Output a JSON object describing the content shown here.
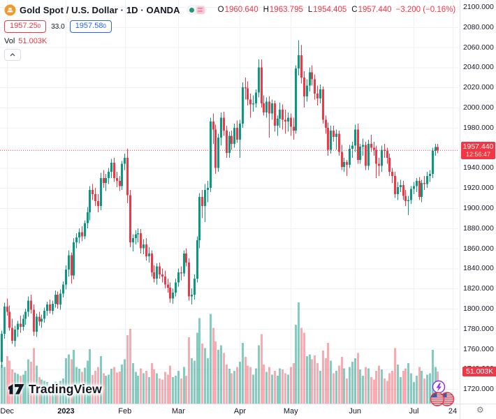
{
  "header": {
    "title": "Gold Spot / U.S. Dollar · 1D · OANDA",
    "ohlc": {
      "o_label": "O",
      "o": "1960.640",
      "h_label": "H",
      "h": "1963.795",
      "l_label": "L",
      "l": "1954.405",
      "c_label": "C",
      "c": "1957.440",
      "change": "−3.200 (−0.16%)"
    },
    "sell_price": "1957.25",
    "sell_sup": "0",
    "spread": "33.0",
    "buy_price": "1957.58",
    "buy_sup": "0",
    "vol_label": "Vol",
    "vol_value": "51.003K"
  },
  "price_tag": {
    "price": "1957.440",
    "countdown": "12:56:47"
  },
  "volume_tag": "51.003K",
  "logo_text": "TradingView",
  "gear_glyph": "⚙",
  "colors": {
    "up": "#089981",
    "down": "#f23645",
    "vol_up": "rgba(8,153,129,0.5)",
    "vol_down": "rgba(242,54,69,0.42)",
    "blue": "#2962ff",
    "grid": "#eef1f6",
    "axis_border": "#e0e3eb",
    "text": "#131722"
  },
  "chart_data": {
    "type": "candlestick+volume",
    "title": "Gold Spot / U.S. Dollar",
    "interval": "1D",
    "exchange": "OANDA",
    "legend_open": 1960.64,
    "legend_high": 1963.795,
    "legend_low": 1954.405,
    "legend_close": 1957.44,
    "change": -3.2,
    "change_pct": -0.16,
    "current_price": 1957.44,
    "current_volume_k": 51.003,
    "y_ticks": {
      "min": 1720,
      "max": 2100,
      "step": 20
    },
    "grid": true,
    "legend_position": "top-left",
    "time_ticks": [
      {
        "label": "Dec",
        "i": 2
      },
      {
        "label": "2023",
        "i": 24,
        "bold": true
      },
      {
        "label": "Feb",
        "i": 46
      },
      {
        "label": "Mar",
        "i": 66
      },
      {
        "label": "Apr",
        "i": 89
      },
      {
        "label": "May",
        "i": 108
      },
      {
        "label": "Jun",
        "i": 132
      },
      {
        "label": "Jul",
        "i": 154
      },
      {
        "label": "24",
        "i": 163,
        "x": 648
      }
    ],
    "candles_format": [
      "open",
      "high",
      "low",
      "close",
      "volume_k"
    ],
    "candles": [
      [
        1747,
        1778,
        1741,
        1775,
        62
      ],
      [
        1775,
        1806,
        1770,
        1802,
        58
      ],
      [
        1802,
        1810,
        1793,
        1797,
        75
      ],
      [
        1797,
        1803,
        1778,
        1781,
        68
      ],
      [
        1781,
        1790,
        1765,
        1768,
        54
      ],
      [
        1768,
        1783,
        1762,
        1779,
        49
      ],
      [
        1779,
        1788,
        1772,
        1785,
        47
      ],
      [
        1785,
        1793,
        1776,
        1782,
        44
      ],
      [
        1782,
        1794,
        1778,
        1790,
        46
      ],
      [
        1790,
        1800,
        1784,
        1797,
        52
      ],
      [
        1797,
        1812,
        1792,
        1808,
        70
      ],
      [
        1808,
        1814,
        1795,
        1799,
        66
      ],
      [
        1799,
        1804,
        1773,
        1777,
        88
      ],
      [
        1777,
        1795,
        1772,
        1792,
        60
      ],
      [
        1792,
        1797,
        1783,
        1787,
        42
      ],
      [
        1787,
        1794,
        1781,
        1790,
        38
      ],
      [
        1790,
        1801,
        1786,
        1798,
        36
      ],
      [
        1798,
        1807,
        1793,
        1804,
        34
      ],
      [
        1804,
        1809,
        1795,
        1798,
        30
      ],
      [
        1798,
        1808,
        1794,
        1805,
        32
      ],
      [
        1805,
        1818,
        1801,
        1814,
        35
      ],
      [
        1814,
        1817,
        1800,
        1804,
        33
      ],
      [
        1804,
        1819,
        1799,
        1815,
        36
      ],
      [
        1815,
        1827,
        1811,
        1824,
        40
      ],
      [
        1824,
        1843,
        1819,
        1839,
        72
      ],
      [
        1839,
        1858,
        1832,
        1853,
        78
      ],
      [
        1853,
        1856,
        1825,
        1833,
        70
      ],
      [
        1833,
        1870,
        1829,
        1866,
        85
      ],
      [
        1866,
        1875,
        1860,
        1871,
        58
      ],
      [
        1871,
        1880,
        1865,
        1876,
        55
      ],
      [
        1876,
        1882,
        1867,
        1872,
        50
      ],
      [
        1872,
        1888,
        1869,
        1885,
        57
      ],
      [
        1885,
        1901,
        1880,
        1896,
        68
      ],
      [
        1896,
        1922,
        1888,
        1918,
        86
      ],
      [
        1918,
        1924,
        1908,
        1914,
        45
      ],
      [
        1914,
        1920,
        1902,
        1907,
        52
      ],
      [
        1907,
        1914,
        1896,
        1902,
        58
      ],
      [
        1902,
        1935,
        1898,
        1930,
        75
      ],
      [
        1930,
        1938,
        1920,
        1925,
        48
      ],
      [
        1925,
        1934,
        1917,
        1930,
        44
      ],
      [
        1930,
        1940,
        1924,
        1936,
        46
      ],
      [
        1936,
        1949,
        1930,
        1945,
        55
      ],
      [
        1945,
        1950,
        1926,
        1930,
        58
      ],
      [
        1930,
        1936,
        1921,
        1927,
        49
      ],
      [
        1927,
        1932,
        1917,
        1922,
        51
      ],
      [
        1922,
        1947,
        1918,
        1944,
        62
      ],
      [
        1944,
        1954,
        1938,
        1950,
        70
      ],
      [
        1950,
        1959,
        1905,
        1913,
        108
      ],
      [
        1913,
        1918,
        1861,
        1866,
        118
      ],
      [
        1866,
        1874,
        1857,
        1870,
        64
      ],
      [
        1870,
        1878,
        1864,
        1874,
        50
      ],
      [
        1874,
        1880,
        1866,
        1875,
        44
      ],
      [
        1875,
        1879,
        1855,
        1860,
        56
      ],
      [
        1860,
        1869,
        1854,
        1864,
        48
      ],
      [
        1864,
        1870,
        1848,
        1852,
        52
      ],
      [
        1852,
        1861,
        1846,
        1855,
        42
      ],
      [
        1855,
        1858,
        1832,
        1836,
        64
      ],
      [
        1836,
        1843,
        1826,
        1830,
        54
      ],
      [
        1830,
        1845,
        1824,
        1842,
        48
      ],
      [
        1842,
        1846,
        1830,
        1834,
        40
      ],
      [
        1834,
        1840,
        1826,
        1832,
        38
      ],
      [
        1832,
        1838,
        1820,
        1824,
        50
      ],
      [
        1824,
        1830,
        1816,
        1821,
        46
      ],
      [
        1821,
        1826,
        1806,
        1810,
        60
      ],
      [
        1810,
        1820,
        1805,
        1816,
        42
      ],
      [
        1816,
        1830,
        1812,
        1826,
        44
      ],
      [
        1826,
        1840,
        1822,
        1836,
        52
      ],
      [
        1836,
        1842,
        1828,
        1835,
        40
      ],
      [
        1835,
        1858,
        1832,
        1855,
        58
      ],
      [
        1855,
        1860,
        1842,
        1846,
        44
      ],
      [
        1846,
        1850,
        1808,
        1812,
        105
      ],
      [
        1812,
        1820,
        1804,
        1814,
        72
      ],
      [
        1814,
        1834,
        1809,
        1830,
        68
      ],
      [
        1830,
        1872,
        1826,
        1868,
        112
      ],
      [
        1868,
        1915,
        1860,
        1911,
        135
      ],
      [
        1911,
        1918,
        1890,
        1902,
        95
      ],
      [
        1902,
        1924,
        1886,
        1918,
        88
      ],
      [
        1918,
        1927,
        1906,
        1920,
        72
      ],
      [
        1920,
        1990,
        1916,
        1986,
        142
      ],
      [
        1986,
        1994,
        1964,
        1978,
        120
      ],
      [
        1978,
        1983,
        1934,
        1940,
        98
      ],
      [
        1940,
        1974,
        1936,
        1970,
        85
      ],
      [
        1970,
        1995,
        1962,
        1990,
        92
      ],
      [
        1990,
        1996,
        1972,
        1977,
        80
      ],
      [
        1977,
        1982,
        1950,
        1955,
        62
      ],
      [
        1955,
        1976,
        1950,
        1972,
        55
      ],
      [
        1972,
        1977,
        1958,
        1964,
        48
      ],
      [
        1964,
        1984,
        1960,
        1980,
        52
      ],
      [
        1980,
        1987,
        1965,
        1968,
        58
      ],
      [
        1968,
        1988,
        1950,
        1984,
        66
      ],
      [
        1984,
        2025,
        1980,
        2020,
        96
      ],
      [
        2020,
        2030,
        2008,
        2019,
        74
      ],
      [
        2019,
        2026,
        2002,
        2008,
        60
      ],
      [
        2008,
        2014,
        1990,
        2003,
        58
      ],
      [
        2003,
        2012,
        1996,
        2004,
        46
      ],
      [
        2004,
        2018,
        2000,
        2015,
        56
      ],
      [
        2015,
        2048,
        2010,
        2040,
        92
      ],
      [
        2040,
        2048,
        2000,
        2004,
        110
      ],
      [
        2004,
        2012,
        1992,
        1995,
        62
      ],
      [
        1995,
        2010,
        1990,
        2006,
        50
      ],
      [
        2006,
        2011,
        1970,
        1994,
        58
      ],
      [
        1994,
        2008,
        1988,
        2004,
        46
      ],
      [
        2004,
        2007,
        1976,
        1982,
        52
      ],
      [
        1982,
        1992,
        1972,
        1989,
        44
      ],
      [
        1989,
        2005,
        1980,
        1998,
        56
      ],
      [
        1998,
        2003,
        1978,
        1988,
        54
      ],
      [
        1988,
        1998,
        1974,
        1986,
        48
      ],
      [
        1986,
        1995,
        1976,
        1990,
        46
      ],
      [
        1990,
        1994,
        1972,
        1981,
        58
      ],
      [
        1981,
        1990,
        1968,
        1977,
        64
      ],
      [
        1977,
        2042,
        1974,
        2039,
        125
      ],
      [
        2039,
        2067,
        2032,
        2052,
        160
      ],
      [
        2052,
        2062,
        2024,
        2030,
        120
      ],
      [
        2030,
        2036,
        2000,
        2011,
        112
      ],
      [
        2011,
        2028,
        2006,
        2022,
        75
      ],
      [
        2022,
        2040,
        2016,
        2035,
        78
      ],
      [
        2035,
        2042,
        2022,
        2028,
        70
      ],
      [
        2028,
        2033,
        2008,
        2014,
        76
      ],
      [
        2014,
        2022,
        2002,
        2009,
        64
      ],
      [
        2009,
        2023,
        2004,
        2018,
        52
      ],
      [
        2018,
        2021,
        1984,
        1988,
        84
      ],
      [
        1988,
        1992,
        1974,
        1980,
        72
      ],
      [
        1980,
        1985,
        1952,
        1958,
        96
      ],
      [
        1958,
        1982,
        1954,
        1977,
        68
      ],
      [
        1977,
        1982,
        1966,
        1971,
        48
      ],
      [
        1971,
        1978,
        1958,
        1974,
        52
      ],
      [
        1974,
        1977,
        1952,
        1956,
        60
      ],
      [
        1956,
        1963,
        1938,
        1941,
        74
      ],
      [
        1941,
        1950,
        1936,
        1946,
        56
      ],
      [
        1946,
        1948,
        1932,
        1943,
        40
      ],
      [
        1943,
        1963,
        1940,
        1959,
        58
      ],
      [
        1959,
        1966,
        1950,
        1962,
        66
      ],
      [
        1962,
        1983,
        1956,
        1978,
        72
      ],
      [
        1978,
        1984,
        1944,
        1948,
        80
      ],
      [
        1948,
        1964,
        1944,
        1961,
        54
      ],
      [
        1961,
        1969,
        1952,
        1963,
        44
      ],
      [
        1963,
        1966,
        1938,
        1942,
        58
      ],
      [
        1942,
        1968,
        1938,
        1964,
        56
      ],
      [
        1964,
        1973,
        1956,
        1960,
        42
      ],
      [
        1960,
        1966,
        1952,
        1958,
        38
      ],
      [
        1958,
        1962,
        1930,
        1944,
        52
      ],
      [
        1944,
        1950,
        1932,
        1942,
        60
      ],
      [
        1942,
        1962,
        1936,
        1958,
        54
      ],
      [
        1958,
        1964,
        1950,
        1957,
        40
      ],
      [
        1957,
        1960,
        1944,
        1950,
        36
      ],
      [
        1950,
        1954,
        1932,
        1936,
        48
      ],
      [
        1936,
        1940,
        1925,
        1932,
        52
      ],
      [
        1932,
        1936,
        1910,
        1914,
        88
      ],
      [
        1914,
        1926,
        1908,
        1921,
        62
      ],
      [
        1921,
        1928,
        1916,
        1923,
        42
      ],
      [
        1923,
        1927,
        1908,
        1912,
        52
      ],
      [
        1912,
        1918,
        1902,
        1907,
        56
      ],
      [
        1907,
        1912,
        1893,
        1908,
        64
      ],
      [
        1908,
        1922,
        1904,
        1919,
        48
      ],
      [
        1919,
        1926,
        1914,
        1922,
        34
      ],
      [
        1922,
        1930,
        1916,
        1927,
        44
      ],
      [
        1927,
        1931,
        1908,
        1911,
        58
      ],
      [
        1911,
        1928,
        1906,
        1925,
        52
      ],
      [
        1925,
        1932,
        1918,
        1924,
        40
      ],
      [
        1924,
        1936,
        1920,
        1932,
        46
      ],
      [
        1932,
        1938,
        1926,
        1934,
        48
      ],
      [
        1934,
        1960,
        1930,
        1957,
        85
      ],
      [
        1957,
        1964,
        1952,
        1960.6,
        58
      ],
      [
        1960.64,
        1963.795,
        1954.405,
        1957.44,
        51.003
      ]
    ]
  }
}
